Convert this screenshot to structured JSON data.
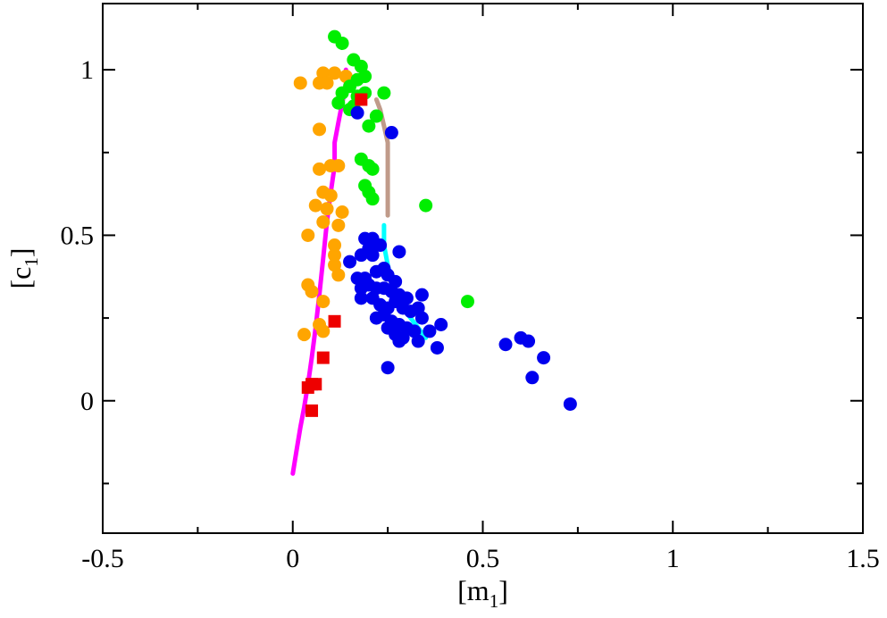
{
  "chart_data": {
    "type": "scatter",
    "xlabel": "[m",
    "xlabel_sub": "1",
    "xlabel_close": "]",
    "ylabel": "[c",
    "ylabel_sub": "1",
    "ylabel_close": "]",
    "xlim": [
      -0.5,
      1.5
    ],
    "ylim": [
      -0.4,
      1.2
    ],
    "x_ticks": [
      {
        "value": -0.5,
        "label": "-0.5"
      },
      {
        "value": 0,
        "label": "0"
      },
      {
        "value": 0.5,
        "label": "0.5"
      },
      {
        "value": 1,
        "label": "1"
      },
      {
        "value": 1.5,
        "label": "1.5"
      }
    ],
    "y_ticks": [
      {
        "value": 0,
        "label": "0"
      },
      {
        "value": 0.5,
        "label": "0.5"
      },
      {
        "value": 1,
        "label": "1"
      }
    ],
    "grid": false,
    "legend": "none",
    "series": [
      {
        "marker": "circle",
        "color": "#ffa500",
        "points": [
          [
            0.02,
            0.96
          ],
          [
            0.08,
            0.99
          ],
          [
            0.11,
            0.99
          ],
          [
            0.14,
            0.98
          ],
          [
            0.07,
            0.96
          ],
          [
            0.09,
            0.96
          ],
          [
            0.07,
            0.82
          ],
          [
            0.07,
            0.7
          ],
          [
            0.1,
            0.71
          ],
          [
            0.12,
            0.71
          ],
          [
            0.08,
            0.63
          ],
          [
            0.1,
            0.62
          ],
          [
            0.06,
            0.59
          ],
          [
            0.09,
            0.58
          ],
          [
            0.13,
            0.57
          ],
          [
            0.08,
            0.54
          ],
          [
            0.12,
            0.53
          ],
          [
            0.04,
            0.5
          ],
          [
            0.11,
            0.47
          ],
          [
            0.11,
            0.44
          ],
          [
            0.11,
            0.41
          ],
          [
            0.12,
            0.38
          ],
          [
            0.04,
            0.35
          ],
          [
            0.05,
            0.33
          ],
          [
            0.08,
            0.3
          ],
          [
            0.07,
            0.23
          ],
          [
            0.08,
            0.21
          ],
          [
            0.03,
            0.2
          ]
        ]
      },
      {
        "marker": "circle",
        "color": "#00ee00",
        "points": [
          [
            0.11,
            1.1
          ],
          [
            0.13,
            1.08
          ],
          [
            0.16,
            1.03
          ],
          [
            0.18,
            1.01
          ],
          [
            0.17,
            0.97
          ],
          [
            0.15,
            0.95
          ],
          [
            0.19,
            0.98
          ],
          [
            0.13,
            0.93
          ],
          [
            0.12,
            0.9
          ],
          [
            0.15,
            0.88
          ],
          [
            0.16,
            0.89
          ],
          [
            0.17,
            0.92
          ],
          [
            0.19,
            0.93
          ],
          [
            0.24,
            0.93
          ],
          [
            0.2,
            0.83
          ],
          [
            0.22,
            0.86
          ],
          [
            0.18,
            0.73
          ],
          [
            0.2,
            0.71
          ],
          [
            0.21,
            0.7
          ],
          [
            0.19,
            0.65
          ],
          [
            0.2,
            0.63
          ],
          [
            0.21,
            0.61
          ],
          [
            0.35,
            0.59
          ],
          [
            0.46,
            0.3
          ]
        ]
      },
      {
        "marker": "square",
        "color": "#ee0000",
        "points": [
          [
            0.18,
            0.91
          ],
          [
            0.11,
            0.24
          ],
          [
            0.08,
            0.13
          ],
          [
            0.05,
            0.05
          ],
          [
            0.06,
            0.05
          ],
          [
            0.04,
            0.04
          ],
          [
            0.05,
            -0.03
          ]
        ]
      },
      {
        "marker": "circle",
        "color": "#0000ee",
        "points": [
          [
            0.17,
            0.87
          ],
          [
            0.26,
            0.81
          ],
          [
            0.19,
            0.49
          ],
          [
            0.21,
            0.49
          ],
          [
            0.2,
            0.46
          ],
          [
            0.23,
            0.47
          ],
          [
            0.28,
            0.45
          ],
          [
            0.18,
            0.44
          ],
          [
            0.15,
            0.42
          ],
          [
            0.21,
            0.44
          ],
          [
            0.24,
            0.4
          ],
          [
            0.17,
            0.37
          ],
          [
            0.19,
            0.37
          ],
          [
            0.22,
            0.39
          ],
          [
            0.25,
            0.38
          ],
          [
            0.27,
            0.36
          ],
          [
            0.18,
            0.34
          ],
          [
            0.2,
            0.35
          ],
          [
            0.22,
            0.34
          ],
          [
            0.24,
            0.34
          ],
          [
            0.26,
            0.33
          ],
          [
            0.28,
            0.32
          ],
          [
            0.3,
            0.31
          ],
          [
            0.34,
            0.32
          ],
          [
            0.18,
            0.31
          ],
          [
            0.21,
            0.31
          ],
          [
            0.23,
            0.29
          ],
          [
            0.25,
            0.28
          ],
          [
            0.27,
            0.3
          ],
          [
            0.29,
            0.28
          ],
          [
            0.31,
            0.27
          ],
          [
            0.33,
            0.28
          ],
          [
            0.34,
            0.25
          ],
          [
            0.22,
            0.25
          ],
          [
            0.24,
            0.26
          ],
          [
            0.26,
            0.24
          ],
          [
            0.28,
            0.23
          ],
          [
            0.3,
            0.22
          ],
          [
            0.32,
            0.21
          ],
          [
            0.25,
            0.22
          ],
          [
            0.27,
            0.2
          ],
          [
            0.29,
            0.19
          ],
          [
            0.28,
            0.18
          ],
          [
            0.33,
            0.18
          ],
          [
            0.36,
            0.21
          ],
          [
            0.39,
            0.23
          ],
          [
            0.38,
            0.16
          ],
          [
            0.25,
            0.1
          ],
          [
            0.56,
            0.17
          ],
          [
            0.6,
            0.19
          ],
          [
            0.62,
            0.18
          ],
          [
            0.66,
            0.13
          ],
          [
            0.63,
            0.07
          ],
          [
            0.73,
            -0.01
          ]
        ]
      },
      {
        "marker": "line",
        "color": "#ff00ff",
        "points": [
          [
            0.0,
            -0.22
          ],
          [
            0.01,
            -0.15
          ],
          [
            0.02,
            -0.08
          ],
          [
            0.03,
            -0.02
          ],
          [
            0.04,
            0.05
          ],
          [
            0.05,
            0.13
          ],
          [
            0.06,
            0.22
          ],
          [
            0.07,
            0.32
          ],
          [
            0.08,
            0.43
          ],
          [
            0.09,
            0.54
          ],
          [
            0.1,
            0.63
          ],
          [
            0.11,
            0.71
          ],
          [
            0.11,
            0.78
          ],
          [
            0.12,
            0.84
          ],
          [
            0.13,
            0.9
          ],
          [
            0.14,
            0.95
          ],
          [
            0.14,
            1.0
          ]
        ]
      },
      {
        "marker": "line",
        "color": "#c09b8a",
        "points": [
          [
            0.22,
            0.91
          ],
          [
            0.23,
            0.88
          ],
          [
            0.24,
            0.83
          ],
          [
            0.25,
            0.78
          ],
          [
            0.25,
            0.72
          ],
          [
            0.25,
            0.66
          ],
          [
            0.25,
            0.6
          ],
          [
            0.25,
            0.56
          ]
        ]
      },
      {
        "marker": "line",
        "color": "#00ffff",
        "points": [
          [
            0.24,
            0.53
          ],
          [
            0.24,
            0.47
          ],
          [
            0.25,
            0.41
          ],
          [
            0.26,
            0.36
          ],
          [
            0.27,
            0.32
          ],
          [
            0.29,
            0.28
          ],
          [
            0.31,
            0.25
          ],
          [
            0.33,
            0.22
          ],
          [
            0.35,
            0.19
          ]
        ]
      }
    ]
  }
}
